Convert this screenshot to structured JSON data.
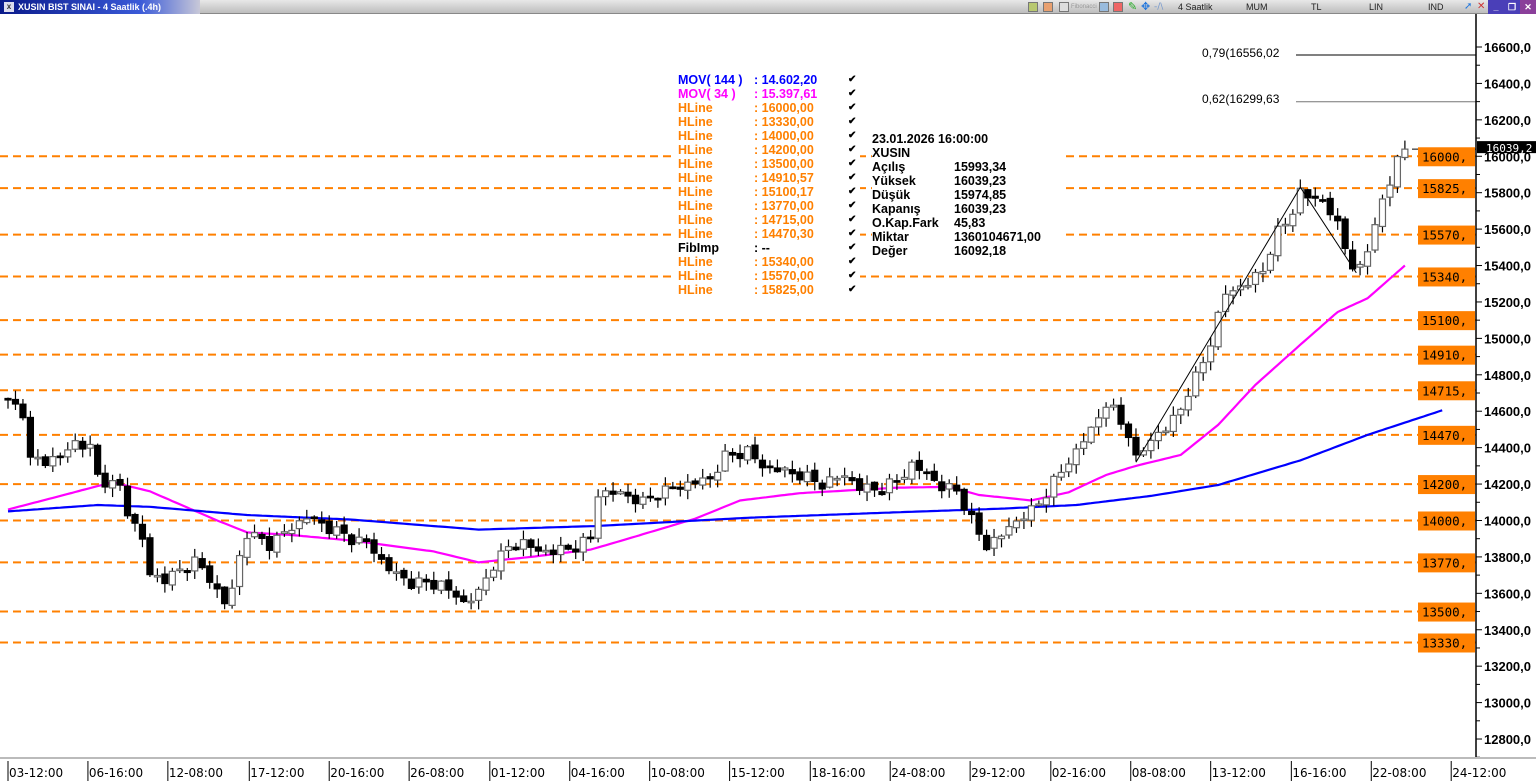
{
  "window": {
    "title": "XUSIN BIST SINAI - 4 Saatlik (.4h)",
    "close_glyph": "x"
  },
  "toolbar": {
    "period": "4 Saatlik",
    "chart_type": "MUM",
    "currency": "TL",
    "scale": "LIN",
    "indicators": "IND",
    "min": "_",
    "restore": "❐",
    "close": "✕",
    "faded_label": "Fibonacci"
  },
  "legend": [
    {
      "name": "MOV( 144 )",
      "value": ": 14.602,20",
      "color": "#0000ff"
    },
    {
      "name": "MOV( 34 )",
      "value": ": 15.397,61",
      "color": "#ff00ff"
    },
    {
      "name": "HLine",
      "value": ": 16000,00",
      "color": "#ff8000"
    },
    {
      "name": "HLine",
      "value": ": 13330,00",
      "color": "#ff8000"
    },
    {
      "name": "HLine",
      "value": ": 14000,00",
      "color": "#ff8000"
    },
    {
      "name": "HLine",
      "value": ": 14200,00",
      "color": "#ff8000"
    },
    {
      "name": "HLine",
      "value": ": 13500,00",
      "color": "#ff8000"
    },
    {
      "name": "HLine",
      "value": ": 14910,57",
      "color": "#ff8000"
    },
    {
      "name": "HLine",
      "value": ": 15100,17",
      "color": "#ff8000"
    },
    {
      "name": "HLine",
      "value": ": 13770,00",
      "color": "#ff8000"
    },
    {
      "name": "HLine",
      "value": ": 14715,00",
      "color": "#ff8000"
    },
    {
      "name": "HLine",
      "value": ": 14470,30",
      "color": "#ff8000"
    },
    {
      "name": "FibImp",
      "value": ": --",
      "color": "#000000"
    },
    {
      "name": "HLine",
      "value": ": 15340,00",
      "color": "#ff8000"
    },
    {
      "name": "HLine",
      "value": ": 15570,00",
      "color": "#ff8000"
    },
    {
      "name": "HLine",
      "value": ": 15825,00",
      "color": "#ff8000"
    }
  ],
  "check_glyph": "✔",
  "info": {
    "datetime": "23.01.2026  16:00:00",
    "symbol": "XUSIN",
    "rows": [
      {
        "k": "Açılış",
        "v": "15993,34"
      },
      {
        "k": "Yüksek",
        "v": "16039,23"
      },
      {
        "k": "Düşük",
        "v": "15974,85"
      },
      {
        "k": "Kapanış",
        "v": "16039,23"
      },
      {
        "k": "O.Kap.Fark",
        "v": "45,83"
      },
      {
        "k": "Miktar",
        "v": "1360104671,00"
      },
      {
        "k": "Değer",
        "v": "16092,18"
      }
    ]
  },
  "fib_labels": [
    {
      "text": "0,79(16556,02",
      "value": 16556.02
    },
    {
      "text": "0,62(16299,63",
      "value": 16299.63
    }
  ],
  "chart_data": {
    "type": "candlestick",
    "candle_count": 188,
    "ylim": [
      12700,
      16750
    ],
    "yticks": [
      16600,
      16400,
      16200,
      16000,
      15800,
      15600,
      15400,
      15200,
      15000,
      14800,
      14600,
      14400,
      14200,
      14000,
      13800,
      13600,
      13400,
      13200,
      13000,
      12800
    ],
    "ytick_labels": [
      "16600,0",
      "16400,0",
      "16200,0",
      "16000,0",
      "15800,0",
      "15600,0",
      "15400,0",
      "15200,0",
      "15000,0",
      "14800,0",
      "14600,0",
      "14400,0",
      "14200,0",
      "14000,0",
      "13800,0",
      "13600,0",
      "13400,0",
      "13200,0",
      "13000,0",
      "12800,0"
    ],
    "xtick_labels": [
      "03-12:00",
      "06-16:00",
      "12-08:00",
      "17-12:00",
      "20-16:00",
      "26-08:00",
      "01-12:00",
      "04-16:00",
      "10-08:00",
      "15-12:00",
      "18-16:00",
      "24-08:00",
      "29-12:00",
      "02-16:00",
      "08-08:00",
      "13-12:00",
      "16-16:00",
      "22-08:00",
      "24-12:00"
    ],
    "xtick_index": [
      0,
      10.7,
      21.4,
      32.3,
      43,
      53.7,
      64.5,
      75.2,
      85.9,
      96.6,
      107.4,
      118.1,
      128.8,
      139.6,
      150.3,
      161,
      171.8,
      182.5,
      193.2
    ],
    "close_anchors": [
      [
        0,
        14650
      ],
      [
        2,
        14600
      ],
      [
        3,
        14330
      ],
      [
        5,
        14330
      ],
      [
        7,
        14350
      ],
      [
        9,
        14430
      ],
      [
        11,
        14400
      ],
      [
        12,
        14240
      ],
      [
        15,
        14180
      ],
      [
        16,
        14050
      ],
      [
        18,
        13900
      ],
      [
        19,
        13700
      ],
      [
        21,
        13680
      ],
      [
        23,
        13720
      ],
      [
        25,
        13780
      ],
      [
        27,
        13680
      ],
      [
        29,
        13550
      ],
      [
        30,
        13620
      ],
      [
        31,
        13800
      ],
      [
        32,
        13930
      ],
      [
        35,
        13870
      ],
      [
        38,
        13960
      ],
      [
        40,
        14020
      ],
      [
        43,
        13960
      ],
      [
        46,
        13900
      ],
      [
        48,
        13880
      ],
      [
        50,
        13780
      ],
      [
        52,
        13700
      ],
      [
        54,
        13660
      ],
      [
        58,
        13650
      ],
      [
        61,
        13550
      ],
      [
        63,
        13600
      ],
      [
        65,
        13760
      ],
      [
        67,
        13850
      ],
      [
        69,
        13880
      ],
      [
        71,
        13830
      ],
      [
        75,
        13840
      ],
      [
        78,
        13900
      ],
      [
        79,
        14150
      ],
      [
        82,
        14150
      ],
      [
        85,
        14100
      ],
      [
        87,
        14150
      ],
      [
        91,
        14200
      ],
      [
        94,
        14230
      ],
      [
        96,
        14350
      ],
      [
        99,
        14380
      ],
      [
        101,
        14300
      ],
      [
        103,
        14280
      ],
      [
        106,
        14250
      ],
      [
        109,
        14200
      ],
      [
        112,
        14250
      ],
      [
        114,
        14180
      ],
      [
        117,
        14170
      ],
      [
        119,
        14220
      ],
      [
        121,
        14300
      ],
      [
        123,
        14260
      ],
      [
        125,
        14180
      ],
      [
        127,
        14170
      ],
      [
        129,
        14000
      ],
      [
        131,
        13860
      ],
      [
        133,
        13920
      ],
      [
        135,
        14000
      ],
      [
        137,
        14050
      ],
      [
        139,
        14150
      ],
      [
        141,
        14270
      ],
      [
        143,
        14380
      ],
      [
        145,
        14500
      ],
      [
        147,
        14640
      ],
      [
        148,
        14600
      ],
      [
        150,
        14480
      ],
      [
        151,
        14330
      ],
      [
        153,
        14450
      ],
      [
        155,
        14500
      ],
      [
        157,
        14620
      ],
      [
        159,
        14780
      ],
      [
        161,
        14980
      ],
      [
        163,
        15250
      ],
      [
        166,
        15300
      ],
      [
        168,
        15380
      ],
      [
        170,
        15580
      ],
      [
        172,
        15700
      ],
      [
        173,
        15800
      ],
      [
        174,
        15780
      ],
      [
        176,
        15760
      ],
      [
        178,
        15620
      ],
      [
        180,
        15400
      ],
      [
        181,
        15370
      ],
      [
        182,
        15490
      ],
      [
        183,
        15640
      ],
      [
        185,
        15850
      ],
      [
        186,
        15993.34
      ],
      [
        187,
        16039.23
      ]
    ],
    "last_candle": {
      "open": 15993.34,
      "high": 16039.23,
      "low": 15974.85,
      "close": 16039.23
    },
    "series": [
      {
        "name": "MOV( 34 )",
        "color": "#ff00ff",
        "anchors": [
          [
            0,
            14060
          ],
          [
            14,
            14210
          ],
          [
            19,
            14160
          ],
          [
            28,
            14000
          ],
          [
            32,
            13935
          ],
          [
            38,
            13920
          ],
          [
            46,
            13890
          ],
          [
            57,
            13830
          ],
          [
            63,
            13770
          ],
          [
            70,
            13800
          ],
          [
            78,
            13840
          ],
          [
            83,
            13900
          ],
          [
            92,
            14010
          ],
          [
            98,
            14110
          ],
          [
            106,
            14150
          ],
          [
            119,
            14180
          ],
          [
            126,
            14185
          ],
          [
            130,
            14140
          ],
          [
            137,
            14110
          ],
          [
            142,
            14155
          ],
          [
            147,
            14250
          ],
          [
            151,
            14300
          ],
          [
            157,
            14360
          ],
          [
            162,
            14525
          ],
          [
            167,
            14745
          ],
          [
            173,
            14965
          ],
          [
            178,
            15145
          ],
          [
            182,
            15220
          ],
          [
            187,
            15400
          ]
        ]
      },
      {
        "name": "MOV( 144 )",
        "color": "#0000ff",
        "anchors": [
          [
            0,
            14050
          ],
          [
            12,
            14085
          ],
          [
            19,
            14075
          ],
          [
            32,
            14030
          ],
          [
            46,
            14005
          ],
          [
            63,
            13950
          ],
          [
            79,
            13970
          ],
          [
            99,
            14015
          ],
          [
            119,
            14045
          ],
          [
            133,
            14065
          ],
          [
            143,
            14085
          ],
          [
            153,
            14135
          ],
          [
            162,
            14195
          ],
          [
            173,
            14330
          ],
          [
            182,
            14470
          ],
          [
            192,
            14605
          ]
        ]
      }
    ],
    "hlines": [
      {
        "value": 16000,
        "label": "16000,"
      },
      {
        "value": 15825,
        "label": "15825,"
      },
      {
        "value": 15570,
        "label": "15570,"
      },
      {
        "value": 15340,
        "label": "15340,"
      },
      {
        "value": 15100.17,
        "label": "15100,"
      },
      {
        "value": 14910.57,
        "label": "14910,"
      },
      {
        "value": 14715,
        "label": "14715,"
      },
      {
        "value": 14470.3,
        "label": "14470,"
      },
      {
        "value": 14200,
        "label": "14200,"
      },
      {
        "value": 14000,
        "label": "14000,"
      },
      {
        "value": 13770,
        "label": "13770,"
      },
      {
        "value": 13500,
        "label": "13500,"
      },
      {
        "value": 13330,
        "label": "13330,"
      }
    ],
    "last_price_label": "16039,2",
    "zigzag": [
      [
        151,
        14320
      ],
      [
        173,
        15830
      ],
      [
        180.5,
        15360
      ]
    ],
    "hline_color": "#ff8000"
  }
}
